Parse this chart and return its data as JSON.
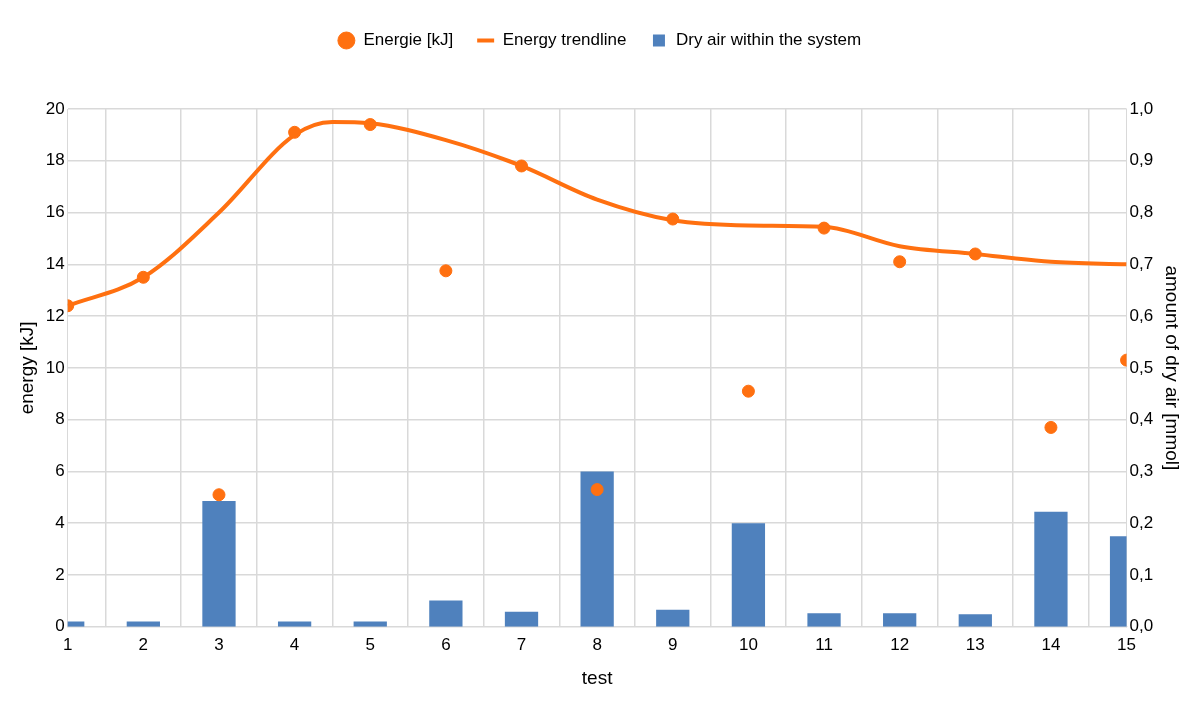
{
  "chart_data": {
    "type": "bar",
    "xlabel": "test",
    "ylabel": "energy [kJ]",
    "y2label": "amount of dry air [mmol]",
    "x": [
      1,
      2,
      3,
      4,
      5,
      6,
      7,
      8,
      9,
      10,
      11,
      12,
      13,
      14,
      15
    ],
    "series": [
      {
        "name": "Energie [kJ]",
        "type": "scatter",
        "marker": "circle",
        "color": "#ff7010",
        "values": [
          12.4,
          13.5,
          5.1,
          19.1,
          19.4,
          13.75,
          17.8,
          5.3,
          15.75,
          9.1,
          15.4,
          14.1,
          14.4,
          7.7,
          10.3
        ]
      },
      {
        "name": "Energy trendline",
        "type": "line",
        "marker": "none",
        "color": "#ff7010",
        "x": [
          1,
          2,
          3,
          4,
          4.5,
          5,
          6,
          7,
          8,
          9,
          10,
          11,
          12,
          13,
          14,
          15
        ],
        "values": [
          12.4,
          13.5,
          16.0,
          19.0,
          19.5,
          19.45,
          18.8,
          17.8,
          16.5,
          15.7,
          15.5,
          15.45,
          14.7,
          14.4,
          14.1,
          14.0
        ]
      },
      {
        "name": "Dry air within the system",
        "axis": "y2",
        "color": "#4f81bd",
        "values": [
          0.01,
          0.01,
          0.243,
          0.01,
          0.01,
          0.051,
          0.029,
          0.3,
          0.033,
          0.2,
          0.026,
          0.026,
          0.024,
          0.222,
          0.175
        ]
      }
    ],
    "xlim": [
      1,
      15
    ],
    "xticks": [
      1,
      2,
      3,
      4,
      5,
      6,
      7,
      8,
      9,
      10,
      11,
      12,
      13,
      14,
      15
    ],
    "ylim": [
      0,
      20
    ],
    "yticks": [
      0,
      2,
      4,
      6,
      8,
      10,
      12,
      14,
      16,
      18,
      20
    ],
    "y2lim": [
      0,
      1
    ],
    "y2ticks": [
      {
        "value": 0,
        "label": "0,0"
      },
      {
        "value": 0.1,
        "label": "0,1"
      },
      {
        "value": 0.2,
        "label": "0,2"
      },
      {
        "value": 0.3,
        "label": "0,3"
      },
      {
        "value": 0.4,
        "label": "0,4"
      },
      {
        "value": 0.5,
        "label": "0,5"
      },
      {
        "value": 0.6,
        "label": "0,6"
      },
      {
        "value": 0.7,
        "label": "0,7"
      },
      {
        "value": 0.8,
        "label": "0,8"
      },
      {
        "value": 0.9,
        "label": "0,9"
      },
      {
        "value": 1,
        "label": "1,0"
      }
    ],
    "grid": true,
    "legend": "top",
    "line_style": "solid"
  }
}
